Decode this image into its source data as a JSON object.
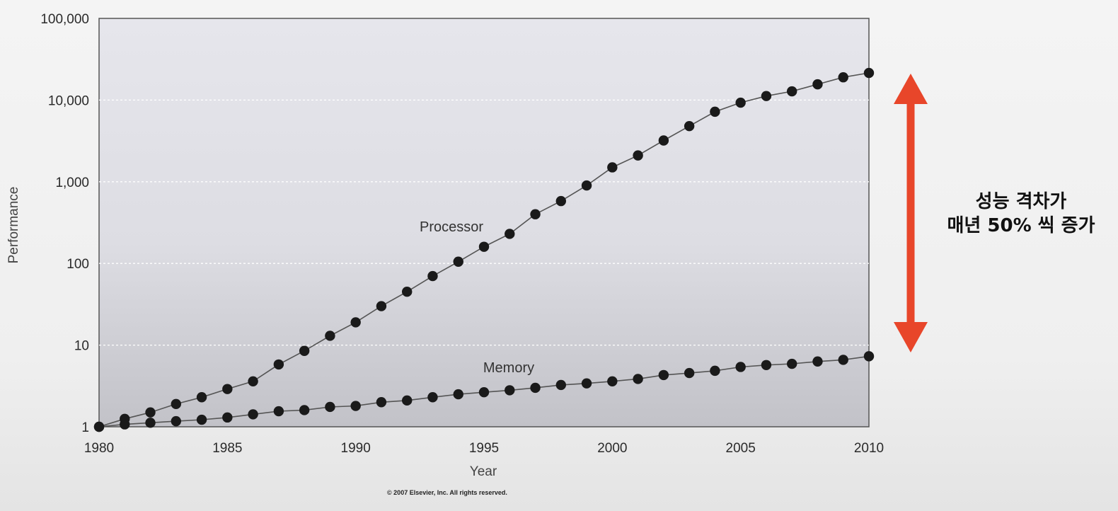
{
  "chart_data": {
    "type": "line",
    "title": "",
    "xlabel": "Year",
    "ylabel": "Performance",
    "yscale": "log",
    "xlim": [
      1980,
      2010
    ],
    "ylim": [
      1,
      100000
    ],
    "x_ticks": [
      "1980",
      "1985",
      "1990",
      "1995",
      "2000",
      "2005",
      "2010"
    ],
    "y_ticks": [
      "1",
      "10",
      "100",
      "1,000",
      "10,000",
      "100,000"
    ],
    "grid": "horizontal-dotted",
    "x": [
      1980,
      1981,
      1982,
      1983,
      1984,
      1985,
      1986,
      1987,
      1988,
      1989,
      1990,
      1991,
      1992,
      1993,
      1994,
      1995,
      1996,
      1997,
      1998,
      1999,
      2000,
      2001,
      2002,
      2003,
      2004,
      2005,
      2006,
      2007,
      2008,
      2009,
      2010
    ],
    "series": [
      {
        "name": "Processor",
        "values": [
          1,
          1.25,
          1.5,
          1.9,
          2.3,
          2.9,
          3.6,
          5.8,
          8.5,
          13,
          19,
          30,
          45,
          70,
          105,
          160,
          230,
          400,
          580,
          900,
          1500,
          2100,
          3200,
          4800,
          7200,
          9300,
          11200,
          12800,
          15600,
          19000,
          21500
        ]
      },
      {
        "name": "Memory",
        "values": [
          1,
          1.07,
          1.12,
          1.17,
          1.22,
          1.3,
          1.42,
          1.55,
          1.6,
          1.75,
          1.8,
          2.0,
          2.1,
          2.3,
          2.5,
          2.65,
          2.8,
          3.0,
          3.25,
          3.4,
          3.6,
          3.85,
          4.3,
          4.55,
          4.85,
          5.4,
          5.7,
          5.9,
          6.3,
          6.6,
          7.3
        ]
      }
    ],
    "annotations": [
      "© 2007 Elsevier, Inc. All rights reserved."
    ]
  },
  "side_note": {
    "line1": "성능 격차가",
    "line2": "매년 50% 씩 증가",
    "arrow_color": "#e8462a"
  },
  "colors": {
    "plot_bg_top": "#e5e5ec",
    "plot_bg_bottom": "#c4c4ca",
    "series": "#1a1a1a",
    "grid": "#ffffff"
  }
}
